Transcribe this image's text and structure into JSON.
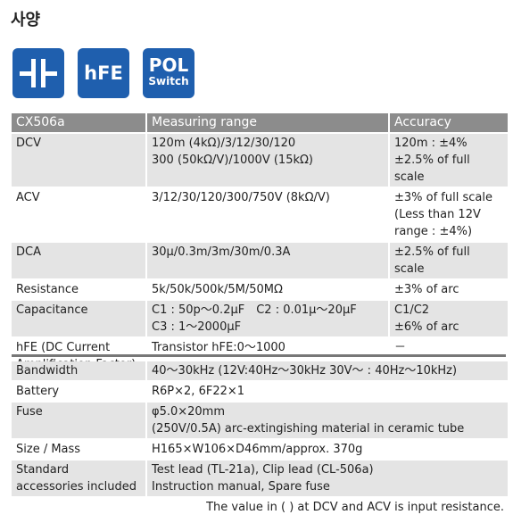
{
  "header": {
    "title": "사양"
  },
  "icons": {
    "hfe": "hFE",
    "pol": "POL",
    "switch": "Switch"
  },
  "table": {
    "columns": [
      "CX506a",
      "Measuring range",
      "Accuracy"
    ],
    "rows": [
      [
        [
          "DCV"
        ],
        [
          "120m (4kΩ)/3/12/30/120",
          "300 (50kΩ/V)/1000V (15kΩ)"
        ],
        [
          "120m : ±4%",
          "±2.5% of full scale"
        ]
      ],
      [
        [
          "ACV"
        ],
        [
          "3/12/30/120/300/750V (8kΩ/V)"
        ],
        [
          "±3% of full scale",
          "(Less than 12V",
          "range : ±4%)"
        ]
      ],
      [
        [
          "DCA"
        ],
        [
          "30μ/0.3m/3m/30m/0.3A"
        ],
        [
          "±2.5% of full scale"
        ]
      ],
      [
        [
          "Resistance"
        ],
        [
          "5k/50k/500k/5M/50MΩ"
        ],
        [
          "±3% of arc"
        ]
      ],
      [
        [
          "Capacitance"
        ],
        [
          "C1 : 50p～0.2μF　C2 : 0.01μ～20μF",
          "C3 : 1～2000μF"
        ],
        [
          "C1/C2",
          "±6% of arc"
        ]
      ],
      [
        [
          "hFE (DC Current",
          "Amplification Factor)"
        ],
        [
          "Transistor hFE:0～1000"
        ],
        [
          "－"
        ]
      ]
    ]
  },
  "table2": {
    "rows": [
      [
        [
          "Bandwidth"
        ],
        [
          "40～30kHz (12V:40Hz～30kHz 30V～ : 40Hz～10kHz)"
        ]
      ],
      [
        [
          "Battery"
        ],
        [
          "R6P×2, 6F22×1"
        ]
      ],
      [
        [
          "Fuse"
        ],
        [
          "φ5.0×20mm",
          "(250V/0.5A) arc-extingishing material in ceramic tube"
        ]
      ],
      [
        [
          "Size / Mass"
        ],
        [
          "H165×W106×D46mm/approx. 370g"
        ]
      ],
      [
        [
          "Standard",
          "accessories included"
        ],
        [
          "Test lead (TL-21a), Clip lead (CL-506a)",
          "Instruction manual, Spare fuse"
        ]
      ]
    ]
  },
  "note": "The value in ( ) at DCV and ACV is input resistance."
}
